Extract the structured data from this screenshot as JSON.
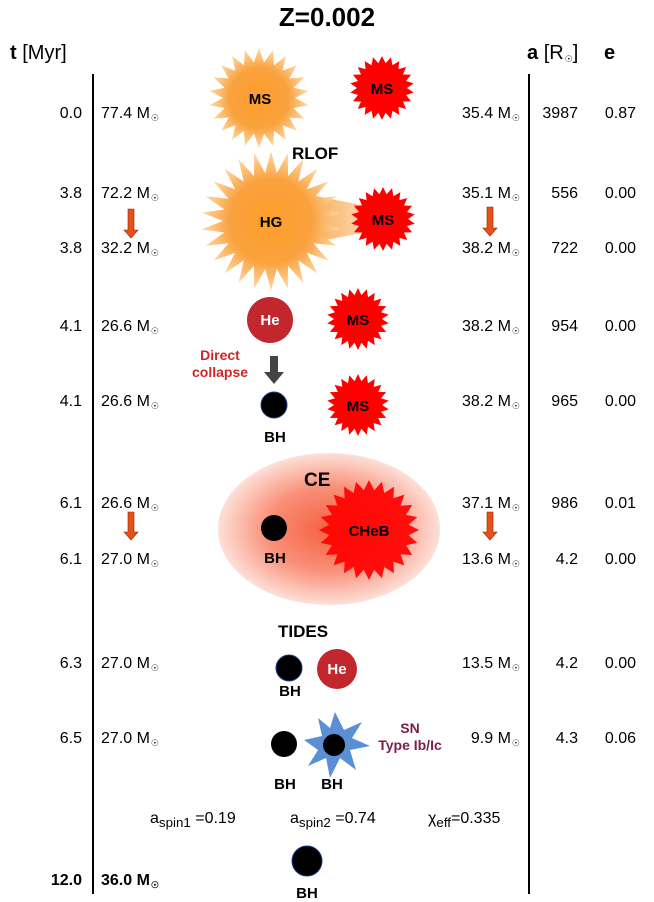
{
  "title": "Z=0.002",
  "header": {
    "t_symbol": "t",
    "t_unit": "[Myr]",
    "a_symbol": "a",
    "a_unit": "[R",
    "a_unit_close": "]",
    "e_symbol": "e"
  },
  "units": {
    "msun": "M",
    "sun_symbol": "☉"
  },
  "rows": [
    {
      "t": "0.0",
      "m1": "77.4",
      "m2": "35.4",
      "a": "3987",
      "e": "0.87"
    },
    {
      "t": "3.8",
      "m1": "72.2",
      "m2": "35.1",
      "a": "556",
      "e": "0.00"
    },
    {
      "t": "3.8",
      "m1": "32.2",
      "m2": "38.2",
      "a": "722",
      "e": "0.00"
    },
    {
      "t": "4.1",
      "m1": "26.6",
      "m2": "38.2",
      "a": "954",
      "e": "0.00"
    },
    {
      "t": "4.1",
      "m1": "26.6",
      "m2": "38.2",
      "a": "965",
      "e": "0.00"
    },
    {
      "t": "6.1",
      "m1": "26.6",
      "m2": "37.1",
      "a": "986",
      "e": "0.01"
    },
    {
      "t": "6.1",
      "m1": "27.0",
      "m2": "13.6",
      "a": "4.2",
      "e": "0.00"
    },
    {
      "t": "6.3",
      "m1": "27.0",
      "m2": "13.5",
      "a": "4.2",
      "e": "0.00"
    },
    {
      "t": "6.5",
      "m1": "27.0",
      "m2": "9.9",
      "a": "4.3",
      "e": "0.06"
    }
  ],
  "final": {
    "t": "12.0",
    "m1": "36.0"
  },
  "phases": {
    "rlof": "RLOF",
    "ce": "CE",
    "tides": "TIDES"
  },
  "stars": {
    "ms": "MS",
    "hg": "HG",
    "he": "He",
    "bh": "BH",
    "cheb": "CHeB"
  },
  "notes": {
    "direct1": "Direct",
    "direct2": "collapse",
    "sn1": "SN",
    "sn2": "Type Ib/Ic"
  },
  "spins": {
    "a_sym": "a",
    "s1_sub": "spin1",
    "s1_val": " =0.19",
    "s2_sub": "spin2",
    "s2_val": " =0.74",
    "chi_sym": "χ",
    "chi_sub": "eff",
    "chi_val": "=0.335"
  },
  "colors": {
    "orange_star": "#f7941d",
    "red_star": "#ff0000",
    "he_star": "#c1272d",
    "bh": "#000000",
    "sn": "#5b8fd4",
    "arrow": "#e8501a",
    "arrow_grey": "#444444"
  }
}
